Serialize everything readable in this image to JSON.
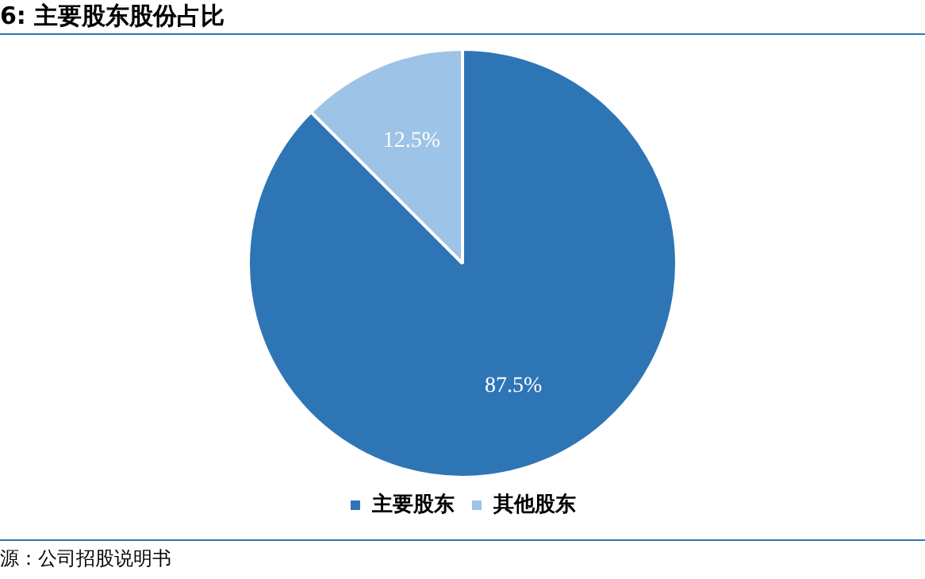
{
  "chart_data": {
    "type": "pie",
    "title": "6:  主要股东股份占比",
    "categories": [
      "主要股东",
      "其他股东"
    ],
    "values": [
      87.5,
      12.5
    ],
    "colors": [
      "#2e75b6",
      "#9dc3e6"
    ],
    "value_labels": [
      "87.5%",
      "12.5%"
    ],
    "legend": "bottom",
    "annotations": [
      "源：公司招股说明书"
    ]
  }
}
